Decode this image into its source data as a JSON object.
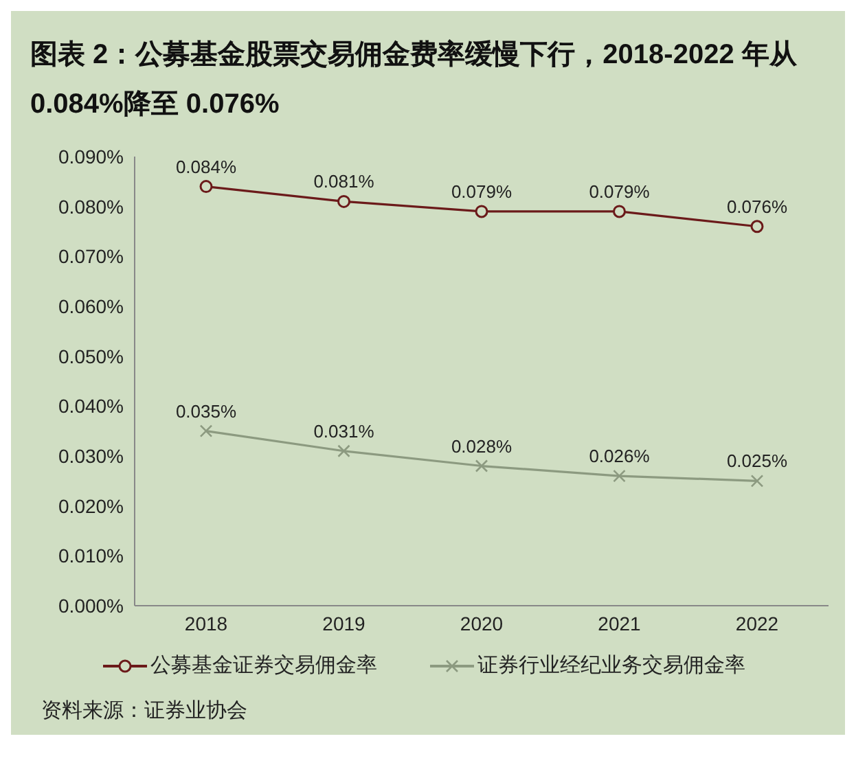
{
  "chart_data": {
    "type": "line",
    "title": "图表 2：公募基金股票交易佣金费率缓慢下行，2018-2022 年从 0.084%降至 0.076%",
    "categories": [
      "2018",
      "2019",
      "2020",
      "2021",
      "2022"
    ],
    "series": [
      {
        "name": "公募基金证券交易佣金率",
        "color": "#6b1a1a",
        "marker": "circle",
        "values": [
          0.084,
          0.081,
          0.079,
          0.079,
          0.076
        ],
        "value_labels": [
          "0.084%",
          "0.081%",
          "0.079%",
          "0.079%",
          "0.076%"
        ]
      },
      {
        "name": "证券行业经纪业务交易佣金率",
        "color": "#8c9a80",
        "marker": "cross",
        "values": [
          0.035,
          0.031,
          0.028,
          0.026,
          0.025
        ],
        "value_labels": [
          "0.035%",
          "0.031%",
          "0.028%",
          "0.026%",
          "0.025%"
        ]
      }
    ],
    "ylim": [
      0,
      0.09
    ],
    "yticks": [
      {
        "value": 0,
        "label": "0.000%"
      },
      {
        "value": 0.01,
        "label": "0.010%"
      },
      {
        "value": 0.02,
        "label": "0.020%"
      },
      {
        "value": 0.03,
        "label": "0.030%"
      },
      {
        "value": 0.04,
        "label": "0.040%"
      },
      {
        "value": 0.05,
        "label": "0.050%"
      },
      {
        "value": 0.06,
        "label": "0.060%"
      },
      {
        "value": 0.07,
        "label": "0.070%"
      },
      {
        "value": 0.08,
        "label": "0.080%"
      },
      {
        "value": 0.09,
        "label": "0.090%"
      }
    ],
    "grid": false,
    "legend": "bottom",
    "line_style": "solid",
    "annotations": [
      "资料来源：证券业协会"
    ]
  }
}
